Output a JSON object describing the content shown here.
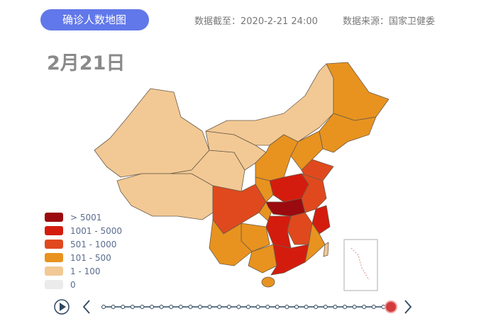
{
  "header": {
    "button": "确诊人数地图",
    "data_cutoff": "数据截至：2020-2-21 24:00",
    "data_source": "数据来源：国家卫健委"
  },
  "date": "2月21日",
  "legend": [
    {
      "label": "> 5001",
      "color": "#9b0a0e"
    },
    {
      "label": "1001 - 5000",
      "color": "#d41c0e"
    },
    {
      "label": "501 - 1000",
      "color": "#e0491d"
    },
    {
      "label": "101 - 500",
      "color": "#e8931f"
    },
    {
      "label": "1 - 100",
      "color": "#f2c994"
    },
    {
      "label": "0",
      "color": "#ebebeb"
    }
  ]
}
